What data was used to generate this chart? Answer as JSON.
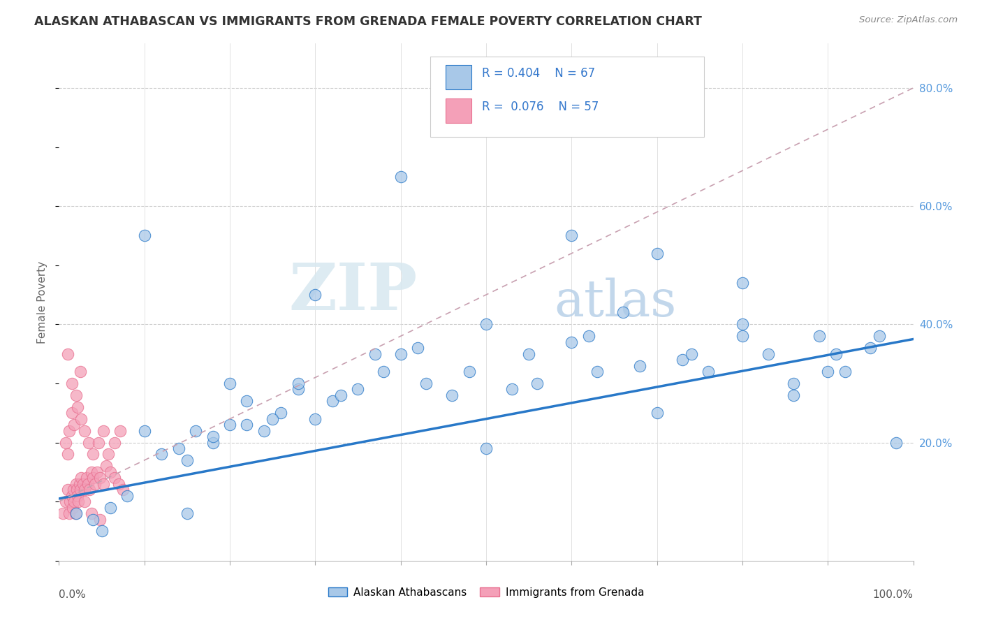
{
  "title": "ALASKAN ATHABASCAN VS IMMIGRANTS FROM GRENADA FEMALE POVERTY CORRELATION CHART",
  "source_text": "Source: ZipAtlas.com",
  "ylabel": "Female Poverty",
  "ylabel_right_ticks": [
    "80.0%",
    "60.0%",
    "40.0%",
    "20.0%"
  ],
  "ylabel_right_vals": [
    0.8,
    0.6,
    0.4,
    0.2
  ],
  "color_blue": "#a8c8e8",
  "color_pink": "#f4a0b8",
  "color_blue_line": "#2878c8",
  "color_pink_line": "#e87090",
  "color_dashed": "#c8a0b0",
  "blue_scatter_x": [
    0.02,
    0.04,
    0.06,
    0.08,
    0.1,
    0.12,
    0.14,
    0.16,
    0.18,
    0.2,
    0.22,
    0.24,
    0.26,
    0.28,
    0.3,
    0.32,
    0.35,
    0.38,
    0.4,
    0.43,
    0.46,
    0.5,
    0.53,
    0.56,
    0.6,
    0.63,
    0.66,
    0.7,
    0.73,
    0.76,
    0.8,
    0.83,
    0.86,
    0.89,
    0.92,
    0.95,
    0.98,
    0.15,
    0.18,
    0.22,
    0.25,
    0.28,
    0.33,
    0.37,
    0.42,
    0.48,
    0.55,
    0.62,
    0.68,
    0.74,
    0.8,
    0.86,
    0.91,
    0.96,
    0.1,
    0.2,
    0.3,
    0.4,
    0.5,
    0.6,
    0.7,
    0.8,
    0.9,
    0.05,
    0.15
  ],
  "blue_scatter_y": [
    0.08,
    0.07,
    0.09,
    0.11,
    0.22,
    0.18,
    0.19,
    0.22,
    0.2,
    0.23,
    0.27,
    0.22,
    0.25,
    0.29,
    0.24,
    0.27,
    0.29,
    0.32,
    0.35,
    0.3,
    0.28,
    0.19,
    0.29,
    0.3,
    0.37,
    0.32,
    0.42,
    0.25,
    0.34,
    0.32,
    0.38,
    0.35,
    0.3,
    0.38,
    0.32,
    0.36,
    0.2,
    0.17,
    0.21,
    0.23,
    0.24,
    0.3,
    0.28,
    0.35,
    0.36,
    0.32,
    0.35,
    0.38,
    0.33,
    0.35,
    0.4,
    0.28,
    0.35,
    0.38,
    0.55,
    0.3,
    0.45,
    0.65,
    0.4,
    0.55,
    0.52,
    0.47,
    0.32,
    0.05,
    0.08
  ],
  "pink_scatter_x": [
    0.005,
    0.008,
    0.01,
    0.012,
    0.013,
    0.015,
    0.016,
    0.017,
    0.018,
    0.019,
    0.02,
    0.021,
    0.022,
    0.023,
    0.024,
    0.025,
    0.026,
    0.028,
    0.03,
    0.032,
    0.034,
    0.036,
    0.038,
    0.04,
    0.042,
    0.045,
    0.048,
    0.052,
    0.055,
    0.06,
    0.065,
    0.07,
    0.075,
    0.008,
    0.01,
    0.012,
    0.015,
    0.018,
    0.022,
    0.026,
    0.03,
    0.035,
    0.04,
    0.046,
    0.052,
    0.058,
    0.065,
    0.072,
    0.01,
    0.015,
    0.02,
    0.025,
    0.03,
    0.038,
    0.048
  ],
  "pink_scatter_y": [
    0.08,
    0.1,
    0.12,
    0.08,
    0.1,
    0.11,
    0.09,
    0.12,
    0.1,
    0.08,
    0.13,
    0.12,
    0.11,
    0.1,
    0.13,
    0.12,
    0.14,
    0.13,
    0.12,
    0.14,
    0.13,
    0.12,
    0.15,
    0.14,
    0.13,
    0.15,
    0.14,
    0.13,
    0.16,
    0.15,
    0.14,
    0.13,
    0.12,
    0.2,
    0.18,
    0.22,
    0.25,
    0.23,
    0.26,
    0.24,
    0.22,
    0.2,
    0.18,
    0.2,
    0.22,
    0.18,
    0.2,
    0.22,
    0.35,
    0.3,
    0.28,
    0.32,
    0.1,
    0.08,
    0.07
  ],
  "xlim": [
    0.0,
    1.0
  ],
  "ylim": [
    0.0,
    0.875
  ],
  "blue_line_x0": 0.0,
  "blue_line_y0": 0.105,
  "blue_line_x1": 1.0,
  "blue_line_y1": 0.375,
  "pink_line_x0": 0.0,
  "pink_line_y0": 0.1,
  "pink_line_x1": 1.0,
  "pink_line_y1": 0.8
}
